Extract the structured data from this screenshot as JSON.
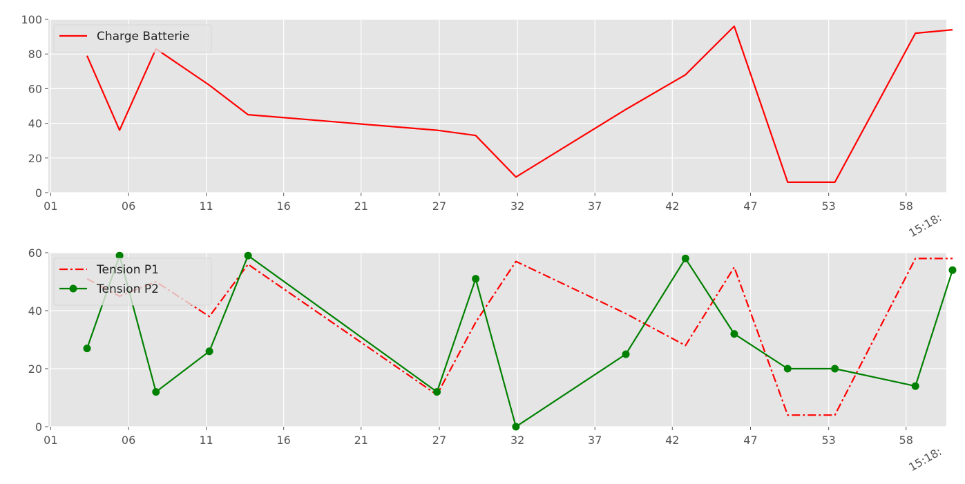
{
  "chart_data": [
    {
      "type": "line",
      "x_axis_kind": "minutes",
      "x_ticks": [
        "01",
        "06",
        "11",
        "16",
        "21",
        "27",
        "32",
        "37",
        "42",
        "47",
        "53",
        "58"
      ],
      "x_ticks_minutes": [
        1.15,
        6.18,
        11.2,
        16.2,
        21.2,
        26.25,
        31.3,
        36.3,
        41.3,
        46.35,
        51.4,
        56.4
      ],
      "x_offset_label": "15:18:",
      "xlim_minutes": [
        1.0,
        59.0
      ],
      "ylim": [
        0,
        100
      ],
      "y_ticks": [
        0,
        20,
        40,
        60,
        80,
        100
      ],
      "grid": true,
      "legend_position": "upper-left",
      "series": [
        {
          "name": "Charge Batterie",
          "color": "#ff0000",
          "line_style": "solid",
          "marker": "none",
          "x": [
            3.5,
            5.6,
            7.95,
            11.4,
            13.9,
            26.1,
            28.6,
            31.2,
            38.3,
            42.15,
            45.3,
            48.75,
            51.8,
            57.0,
            59.4
          ],
          "y": [
            79,
            36,
            83,
            62,
            45,
            36,
            33,
            9,
            48,
            68,
            96,
            6,
            6,
            92,
            94
          ]
        }
      ]
    },
    {
      "type": "line",
      "x_axis_kind": "minutes",
      "x_ticks": [
        "01",
        "06",
        "11",
        "16",
        "21",
        "27",
        "32",
        "37",
        "42",
        "47",
        "53",
        "58"
      ],
      "x_ticks_minutes": [
        1.15,
        6.18,
        11.2,
        16.2,
        21.2,
        26.25,
        31.3,
        36.3,
        41.3,
        46.35,
        51.4,
        56.4
      ],
      "x_offset_label": "15:18:",
      "xlim_minutes": [
        1.0,
        59.0
      ],
      "ylim": [
        0,
        60
      ],
      "y_ticks": [
        0,
        20,
        40,
        60
      ],
      "grid": true,
      "legend_position": "upper-left",
      "series": [
        {
          "name": "Tension P1",
          "color": "#ff0000",
          "line_style": "dashdot",
          "marker": "none",
          "x": [
            3.5,
            5.6,
            7.95,
            11.4,
            13.9,
            26.1,
            28.6,
            31.2,
            38.3,
            42.15,
            45.3,
            48.75,
            51.8,
            57.0,
            59.4
          ],
          "y": [
            51,
            45,
            50,
            38,
            56,
            11,
            36,
            57,
            39,
            28,
            55,
            4,
            4,
            58,
            58
          ]
        },
        {
          "name": "Tension P2",
          "color": "#008000",
          "line_style": "solid",
          "marker": "circle",
          "x": [
            3.5,
            5.6,
            7.95,
            11.4,
            13.9,
            26.1,
            28.6,
            31.2,
            38.3,
            42.15,
            45.3,
            48.75,
            51.8,
            57.0,
            59.4
          ],
          "y": [
            27,
            59,
            12,
            26,
            59,
            12,
            51,
            0,
            25,
            58,
            32,
            20,
            20,
            14,
            54
          ]
        }
      ]
    }
  ]
}
